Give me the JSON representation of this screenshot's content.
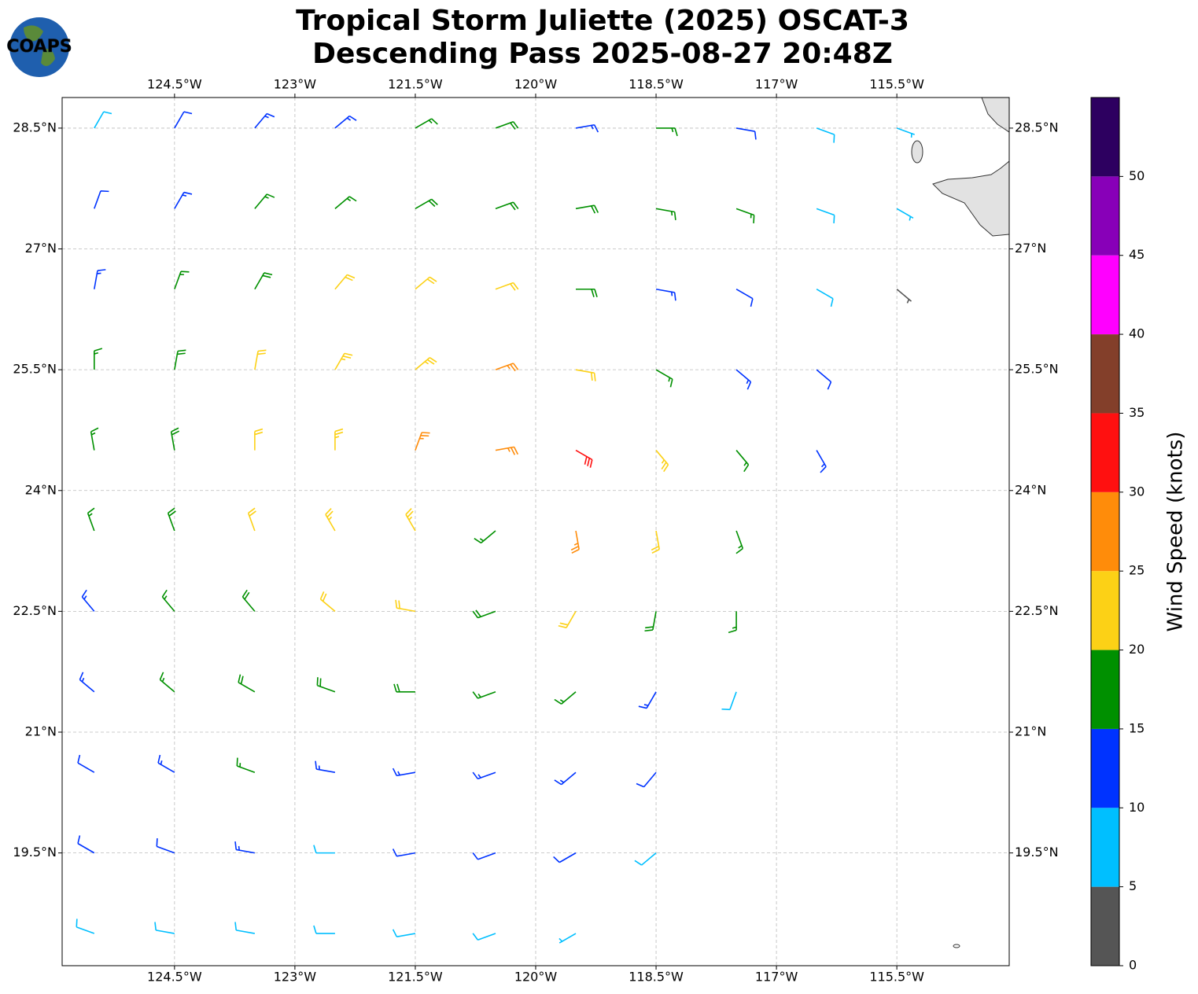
{
  "chart_data": {
    "type": "barbs",
    "title": "Tropical Storm Juliette (2025) OSCAT-3",
    "subtitle": "Descending Pass 2025-08-27 20:48Z",
    "logo": "COAPS",
    "xlim": [
      -125.9,
      -114.1
    ],
    "ylim": [
      18.1,
      28.88
    ],
    "xticks": [
      {
        "value": -124.5,
        "label": "124.5°W"
      },
      {
        "value": -123,
        "label": "123°W"
      },
      {
        "value": -121.5,
        "label": "121.5°W"
      },
      {
        "value": -120,
        "label": "120°W"
      },
      {
        "value": -118.5,
        "label": "118.5°W"
      },
      {
        "value": -117,
        "label": "117°W"
      },
      {
        "value": -115.5,
        "label": "115.5°W"
      }
    ],
    "yticks": [
      {
        "value": 19.5,
        "label": "19.5°N"
      },
      {
        "value": 21,
        "label": "21°N"
      },
      {
        "value": 22.5,
        "label": "22.5°N"
      },
      {
        "value": 24,
        "label": "24°N"
      },
      {
        "value": 25.5,
        "label": "25.5°N"
      },
      {
        "value": 27,
        "label": "27°N"
      },
      {
        "value": 28.5,
        "label": "28.5°N"
      }
    ],
    "grid": true,
    "colorbar": {
      "label": "Wind Speed (knots)",
      "lim": [
        0,
        55
      ],
      "boundaries": [
        0,
        5,
        10,
        15,
        20,
        25,
        30,
        35,
        40,
        45,
        50,
        55
      ],
      "colors": [
        "#555555",
        "#00bfff",
        "#0033ff",
        "#009000",
        "#fcd116",
        "#ff8c0a",
        "#ff1010",
        "#833f2a",
        "#ff00ff",
        "#8800b8",
        "#2d0060"
      ],
      "ticks": [
        0,
        5,
        10,
        15,
        20,
        25,
        30,
        35,
        40,
        45,
        50
      ]
    },
    "barbs": [
      {
        "lon": -125.5,
        "lat": 28.5,
        "speed": 8,
        "direction": 30
      },
      {
        "lon": -124.5,
        "lat": 28.5,
        "speed": 12,
        "direction": 30
      },
      {
        "lon": -123.5,
        "lat": 28.5,
        "speed": 13,
        "direction": 40
      },
      {
        "lon": -122.5,
        "lat": 28.5,
        "speed": 14,
        "direction": 50
      },
      {
        "lon": -121.5,
        "lat": 28.5,
        "speed": 17,
        "direction": 60
      },
      {
        "lon": -120.5,
        "lat": 28.5,
        "speed": 18,
        "direction": 70
      },
      {
        "lon": -119.5,
        "lat": 28.5,
        "speed": 14,
        "direction": 80
      },
      {
        "lon": -118.5,
        "lat": 28.5,
        "speed": 16,
        "direction": 90
      },
      {
        "lon": -117.5,
        "lat": 28.5,
        "speed": 12,
        "direction": 100
      },
      {
        "lon": -116.5,
        "lat": 28.5,
        "speed": 9,
        "direction": 110
      },
      {
        "lon": -115.5,
        "lat": 28.5,
        "speed": 7,
        "direction": 110
      },
      {
        "lon": -125.5,
        "lat": 27.5,
        "speed": 12,
        "direction": 20
      },
      {
        "lon": -124.5,
        "lat": 27.5,
        "speed": 14,
        "direction": 30
      },
      {
        "lon": -123.5,
        "lat": 27.5,
        "speed": 16,
        "direction": 40
      },
      {
        "lon": -122.5,
        "lat": 27.5,
        "speed": 17,
        "direction": 50
      },
      {
        "lon": -121.5,
        "lat": 27.5,
        "speed": 19,
        "direction": 60
      },
      {
        "lon": -120.5,
        "lat": 27.5,
        "speed": 19,
        "direction": 70
      },
      {
        "lon": -119.5,
        "lat": 27.5,
        "speed": 18,
        "direction": 80
      },
      {
        "lon": -118.5,
        "lat": 27.5,
        "speed": 17,
        "direction": 100
      },
      {
        "lon": -117.5,
        "lat": 27.5,
        "speed": 16,
        "direction": 110
      },
      {
        "lon": -116.5,
        "lat": 27.5,
        "speed": 9,
        "direction": 110
      },
      {
        "lon": -115.5,
        "lat": 27.5,
        "speed": 7,
        "direction": 120
      },
      {
        "lon": -125.5,
        "lat": 26.5,
        "speed": 14,
        "direction": 10
      },
      {
        "lon": -124.5,
        "lat": 26.5,
        "speed": 16,
        "direction": 20
      },
      {
        "lon": -123.5,
        "lat": 26.5,
        "speed": 18,
        "direction": 30
      },
      {
        "lon": -122.5,
        "lat": 26.5,
        "speed": 21,
        "direction": 40
      },
      {
        "lon": -121.5,
        "lat": 26.5,
        "speed": 22,
        "direction": 50
      },
      {
        "lon": -120.5,
        "lat": 26.5,
        "speed": 22,
        "direction": 70
      },
      {
        "lon": -119.5,
        "lat": 26.5,
        "speed": 19,
        "direction": 90
      },
      {
        "lon": -118.5,
        "lat": 26.5,
        "speed": 14,
        "direction": 100
      },
      {
        "lon": -117.5,
        "lat": 26.5,
        "speed": 12,
        "direction": 120
      },
      {
        "lon": -116.5,
        "lat": 26.5,
        "speed": 9,
        "direction": 120
      },
      {
        "lon": -115.5,
        "lat": 26.5,
        "speed": 4,
        "direction": 130
      },
      {
        "lon": -125.5,
        "lat": 25.5,
        "speed": 16,
        "direction": 0
      },
      {
        "lon": -124.5,
        "lat": 25.5,
        "speed": 18,
        "direction": 10
      },
      {
        "lon": -123.5,
        "lat": 25.5,
        "speed": 21,
        "direction": 10
      },
      {
        "lon": -122.5,
        "lat": 25.5,
        "speed": 23,
        "direction": 30
      },
      {
        "lon": -121.5,
        "lat": 25.5,
        "speed": 23,
        "direction": 50
      },
      {
        "lon": -120.5,
        "lat": 25.5,
        "speed": 26,
        "direction": 70
      },
      {
        "lon": -119.5,
        "lat": 25.5,
        "speed": 21,
        "direction": 100
      },
      {
        "lon": -118.5,
        "lat": 25.5,
        "speed": 17,
        "direction": 120
      },
      {
        "lon": -117.5,
        "lat": 25.5,
        "speed": 14,
        "direction": 130
      },
      {
        "lon": -116.5,
        "lat": 25.5,
        "speed": 12,
        "direction": 130
      },
      {
        "lon": -125.5,
        "lat": 24.5,
        "speed": 17,
        "direction": 350
      },
      {
        "lon": -124.5,
        "lat": 24.5,
        "speed": 19,
        "direction": 350
      },
      {
        "lon": -123.5,
        "lat": 24.5,
        "speed": 21,
        "direction": 0
      },
      {
        "lon": -122.5,
        "lat": 24.5,
        "speed": 23,
        "direction": 0
      },
      {
        "lon": -121.5,
        "lat": 24.5,
        "speed": 26,
        "direction": 20
      },
      {
        "lon": -120.5,
        "lat": 24.5,
        "speed": 27,
        "direction": 80
      },
      {
        "lon": -119.5,
        "lat": 24.5,
        "speed": 32,
        "direction": 120
      },
      {
        "lon": -118.5,
        "lat": 24.5,
        "speed": 23,
        "direction": 140
      },
      {
        "lon": -117.5,
        "lat": 24.5,
        "speed": 17,
        "direction": 140
      },
      {
        "lon": -116.5,
        "lat": 24.5,
        "speed": 13,
        "direction": 150
      },
      {
        "lon": -125.5,
        "lat": 23.5,
        "speed": 17,
        "direction": 340
      },
      {
        "lon": -124.5,
        "lat": 23.5,
        "speed": 19,
        "direction": 340
      },
      {
        "lon": -123.5,
        "lat": 23.5,
        "speed": 22,
        "direction": 340
      },
      {
        "lon": -122.5,
        "lat": 23.5,
        "speed": 23,
        "direction": 330
      },
      {
        "lon": -121.5,
        "lat": 23.5,
        "speed": 24,
        "direction": 330
      },
      {
        "lon": -120.5,
        "lat": 23.5,
        "speed": 16,
        "direction": 230
      },
      {
        "lon": -119.5,
        "lat": 23.5,
        "speed": 27,
        "direction": 170
      },
      {
        "lon": -118.5,
        "lat": 23.5,
        "speed": 21,
        "direction": 170
      },
      {
        "lon": -117.5,
        "lat": 23.5,
        "speed": 17,
        "direction": 160
      },
      {
        "lon": -125.5,
        "lat": 22.5,
        "speed": 14,
        "direction": 320
      },
      {
        "lon": -124.5,
        "lat": 22.5,
        "speed": 17,
        "direction": 320
      },
      {
        "lon": -123.5,
        "lat": 22.5,
        "speed": 19,
        "direction": 320
      },
      {
        "lon": -122.5,
        "lat": 22.5,
        "speed": 21,
        "direction": 310
      },
      {
        "lon": -121.5,
        "lat": 22.5,
        "speed": 22,
        "direction": 280
      },
      {
        "lon": -120.5,
        "lat": 22.5,
        "speed": 19,
        "direction": 250
      },
      {
        "lon": -119.5,
        "lat": 22.5,
        "speed": 22,
        "direction": 210
      },
      {
        "lon": -118.5,
        "lat": 22.5,
        "speed": 18,
        "direction": 190
      },
      {
        "lon": -117.5,
        "lat": 22.5,
        "speed": 16,
        "direction": 180
      },
      {
        "lon": -125.5,
        "lat": 21.5,
        "speed": 13,
        "direction": 310
      },
      {
        "lon": -124.5,
        "lat": 21.5,
        "speed": 16,
        "direction": 310
      },
      {
        "lon": -123.5,
        "lat": 21.5,
        "speed": 18,
        "direction": 300
      },
      {
        "lon": -122.5,
        "lat": 21.5,
        "speed": 19,
        "direction": 290
      },
      {
        "lon": -121.5,
        "lat": 21.5,
        "speed": 18,
        "direction": 270
      },
      {
        "lon": -120.5,
        "lat": 21.5,
        "speed": 17,
        "direction": 250
      },
      {
        "lon": -119.5,
        "lat": 21.5,
        "speed": 17,
        "direction": 230
      },
      {
        "lon": -118.5,
        "lat": 21.5,
        "speed": 14,
        "direction": 210
      },
      {
        "lon": -117.5,
        "lat": 21.5,
        "speed": 9,
        "direction": 200
      },
      {
        "lon": -125.5,
        "lat": 20.5,
        "speed": 12,
        "direction": 300
      },
      {
        "lon": -124.5,
        "lat": 20.5,
        "speed": 14,
        "direction": 300
      },
      {
        "lon": -123.5,
        "lat": 20.5,
        "speed": 16,
        "direction": 290
      },
      {
        "lon": -122.5,
        "lat": 20.5,
        "speed": 14,
        "direction": 280
      },
      {
        "lon": -121.5,
        "lat": 20.5,
        "speed": 13,
        "direction": 260
      },
      {
        "lon": -120.5,
        "lat": 20.5,
        "speed": 14,
        "direction": 250
      },
      {
        "lon": -119.5,
        "lat": 20.5,
        "speed": 13,
        "direction": 230
      },
      {
        "lon": -118.5,
        "lat": 20.5,
        "speed": 11,
        "direction": 220
      },
      {
        "lon": -125.5,
        "lat": 19.5,
        "speed": 11,
        "direction": 300
      },
      {
        "lon": -124.5,
        "lat": 19.5,
        "speed": 12,
        "direction": 290
      },
      {
        "lon": -123.5,
        "lat": 19.5,
        "speed": 13,
        "direction": 280
      },
      {
        "lon": -122.5,
        "lat": 19.5,
        "speed": 9,
        "direction": 270
      },
      {
        "lon": -121.5,
        "lat": 19.5,
        "speed": 11,
        "direction": 260
      },
      {
        "lon": -120.5,
        "lat": 19.5,
        "speed": 12,
        "direction": 250
      },
      {
        "lon": -119.5,
        "lat": 19.5,
        "speed": 11,
        "direction": 240
      },
      {
        "lon": -118.5,
        "lat": 19.5,
        "speed": 8,
        "direction": 230
      },
      {
        "lon": -125.5,
        "lat": 18.5,
        "speed": 8,
        "direction": 290
      },
      {
        "lon": -124.5,
        "lat": 18.5,
        "speed": 9,
        "direction": 280
      },
      {
        "lon": -123.5,
        "lat": 18.5,
        "speed": 9,
        "direction": 280
      },
      {
        "lon": -122.5,
        "lat": 18.5,
        "speed": 8,
        "direction": 270
      },
      {
        "lon": -121.5,
        "lat": 18.5,
        "speed": 9,
        "direction": 260
      },
      {
        "lon": -120.5,
        "lat": 18.5,
        "speed": 8,
        "direction": 250
      },
      {
        "lon": -119.5,
        "lat": 18.5,
        "speed": 7,
        "direction": 240
      }
    ]
  }
}
